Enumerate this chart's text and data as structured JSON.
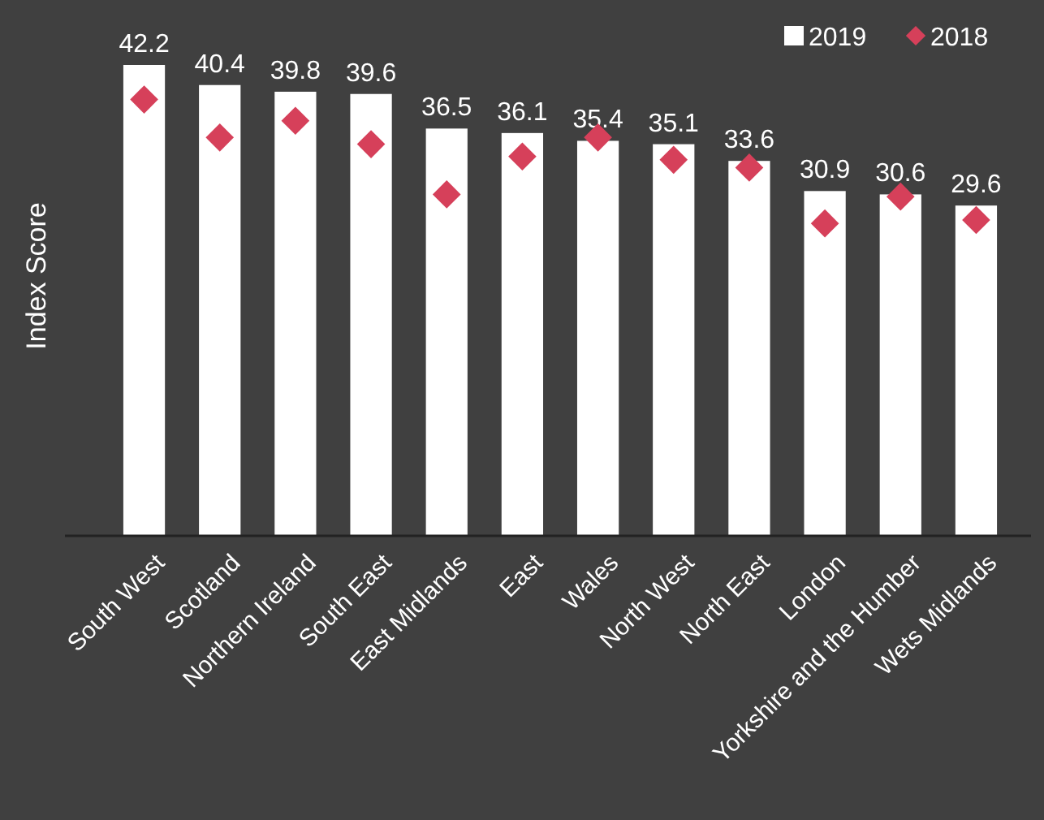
{
  "chart_data": {
    "type": "bar",
    "ylabel": "Index Score",
    "categories": [
      "South West",
      "Scotland",
      "Northern Ireland",
      "South East",
      "East Midlands",
      "East",
      "Wales",
      "North West",
      "North East",
      "London",
      "Yorkshire and the Humber",
      "Wets Midlands"
    ],
    "tick_labels": "x",
    "legend": "top right",
    "series": [
      {
        "name": "2019",
        "color": "#ffffff",
        "values": [
          42.2,
          40.4,
          39.8,
          39.6,
          36.5,
          36.1,
          35.4,
          35.1,
          33.6,
          30.9,
          30.6,
          29.6
        ],
        "value_labels": [
          "42.2",
          "40.4",
          "39.8",
          "39.6",
          "36.5",
          "36.1",
          "35.4",
          "35.1",
          "33.6",
          "30.9",
          "30.6",
          "29.6"
        ]
      },
      {
        "name": "2018",
        "type": "scatter",
        "marker": "diamond",
        "color": "#d6405a",
        "values": [
          39.1,
          35.7,
          37.2,
          35.1,
          30.6,
          34.0,
          35.7,
          33.7,
          33.0,
          28.0,
          30.4,
          28.3
        ]
      }
    ]
  }
}
